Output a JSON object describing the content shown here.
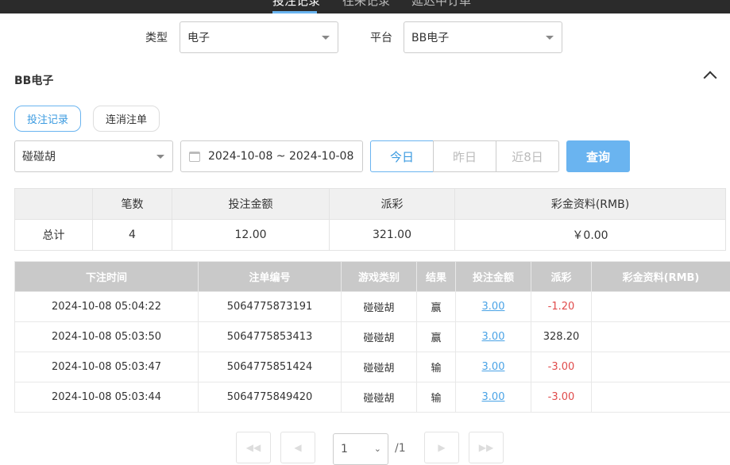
{
  "top_tabs": [
    {
      "label": "投注记录",
      "active": true
    },
    {
      "label": "往来记录",
      "active": false
    },
    {
      "label": "延迟中订单",
      "active": false
    }
  ],
  "filters": {
    "type_label": "类型",
    "type_value": "电子",
    "platform_label": "平台",
    "platform_value": "BB电子"
  },
  "section": {
    "title": "BB电子"
  },
  "sub_tabs": [
    "投注记录",
    "连消注单"
  ],
  "query": {
    "game_value": "碰碰胡",
    "date_range": "2024-10-08 ~ 2024-10-08",
    "today": "今日",
    "yesterday": "昨日",
    "last8": "近8日",
    "search": "查询"
  },
  "summary": {
    "headers": [
      "",
      "笔数",
      "投注金额",
      "派彩",
      "彩金资料(RMB)"
    ],
    "row": [
      "总计",
      "4",
      "12.00",
      "321.00",
      "￥0.00"
    ]
  },
  "records": {
    "headers": [
      "下注时间",
      "注单编号",
      "游戏类别",
      "结果",
      "投注金额",
      "派彩",
      "彩金资料(RMB)"
    ],
    "rows": [
      [
        "2024-10-08 05:04:22",
        "5064775873191",
        "碰碰胡",
        "赢",
        "3.00",
        "-1.20",
        ""
      ],
      [
        "2024-10-08 05:03:50",
        "5064775853413",
        "碰碰胡",
        "赢",
        "3.00",
        "328.20",
        ""
      ],
      [
        "2024-10-08 05:03:47",
        "5064775851424",
        "碰碰胡",
        "输",
        "3.00",
        "-3.00",
        ""
      ],
      [
        "2024-10-08 05:03:44",
        "5064775849420",
        "碰碰胡",
        "输",
        "3.00",
        "-3.00",
        ""
      ]
    ]
  },
  "pagination": {
    "page": "1",
    "total": "/1"
  },
  "colors": {
    "accent": "#6ab4f0",
    "negative": "#e04b4b",
    "header_bg": "#c9c9c9"
  }
}
